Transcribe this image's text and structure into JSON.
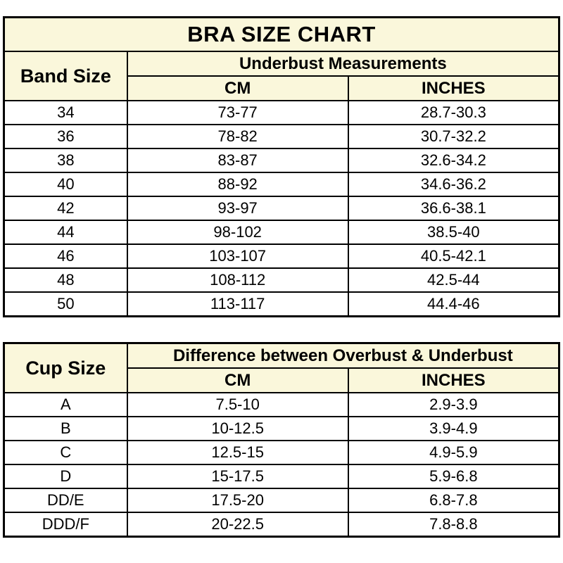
{
  "colors": {
    "header_background": "#faf7db",
    "border": "#000000",
    "text": "#000000",
    "page_background": "#ffffff"
  },
  "chart_data": [
    {
      "type": "table",
      "title": "BRA SIZE CHART",
      "row_header": "Band Size",
      "group_header": "Underbust Measurements",
      "columns": [
        "CM",
        "INCHES"
      ],
      "rows": [
        [
          "34",
          "73-77",
          "28.7-30.3"
        ],
        [
          "36",
          "78-82",
          "30.7-32.2"
        ],
        [
          "38",
          "83-87",
          "32.6-34.2"
        ],
        [
          "40",
          "88-92",
          "34.6-36.2"
        ],
        [
          "42",
          "93-97",
          "36.6-38.1"
        ],
        [
          "44",
          "98-102",
          "38.5-40"
        ],
        [
          "46",
          "103-107",
          "40.5-42.1"
        ],
        [
          "48",
          "108-112",
          "42.5-44"
        ],
        [
          "50",
          "113-117",
          "44.4-46"
        ]
      ]
    },
    {
      "type": "table",
      "title": "",
      "row_header": "Cup Size",
      "group_header": "Difference between Overbust & Underbust",
      "columns": [
        "CM",
        "INCHES"
      ],
      "rows": [
        [
          "A",
          "7.5-10",
          "2.9-3.9"
        ],
        [
          "B",
          "10-12.5",
          "3.9-4.9"
        ],
        [
          "C",
          "12.5-15",
          "4.9-5.9"
        ],
        [
          "D",
          "15-17.5",
          "5.9-6.8"
        ],
        [
          "DD/E",
          "17.5-20",
          "6.8-7.8"
        ],
        [
          "DDD/F",
          "20-22.5",
          "7.8-8.8"
        ]
      ]
    }
  ]
}
